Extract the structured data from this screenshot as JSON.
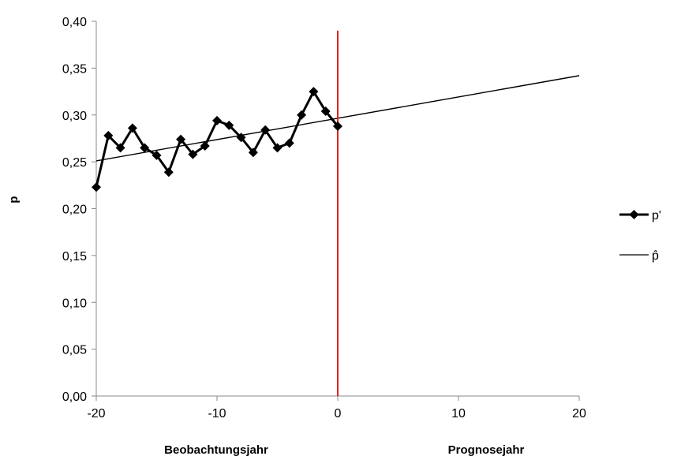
{
  "chart_data": {
    "type": "line",
    "xlabel_left": "Beobachtungsjahr",
    "xlabel_right": "Prognosejahr",
    "ylabel": "p",
    "xlim": [
      -20,
      20
    ],
    "ylim": [
      0,
      0.4
    ],
    "x_ticks": [
      -20,
      -10,
      0,
      10,
      20
    ],
    "x_tick_labels": [
      "-20",
      "-10",
      "0",
      "10",
      "20"
    ],
    "y_ticks": [
      0,
      0.05,
      0.1,
      0.15,
      0.2,
      0.25,
      0.3,
      0.35,
      0.4
    ],
    "y_tick_labels": [
      "0,00",
      "0,05",
      "0,10",
      "0,15",
      "0,20",
      "0,25",
      "0,30",
      "0,35",
      "0,40"
    ],
    "grid": false,
    "legend_position": "right",
    "series": [
      {
        "name": "p'",
        "style": "line-diamond-markers",
        "color": "#000000",
        "x": [
          -20,
          -19,
          -18,
          -17,
          -16,
          -15,
          -14,
          -13,
          -12,
          -11,
          -10,
          -9,
          -8,
          -7,
          -6,
          -5,
          -4,
          -3,
          -2,
          -1,
          0
        ],
        "y": [
          0.223,
          0.278,
          0.265,
          0.286,
          0.265,
          0.257,
          0.239,
          0.274,
          0.258,
          0.267,
          0.294,
          0.289,
          0.276,
          0.26,
          0.284,
          0.265,
          0.27,
          0.3,
          0.325,
          0.304,
          0.288
        ]
      },
      {
        "name": "p̂",
        "style": "thin-line",
        "color": "#000000",
        "x": [
          -20,
          20
        ],
        "y": [
          0.251,
          0.342
        ]
      }
    ],
    "vertical_line": {
      "x": 0,
      "y_top": 0.39,
      "color": "#e0201b"
    }
  }
}
